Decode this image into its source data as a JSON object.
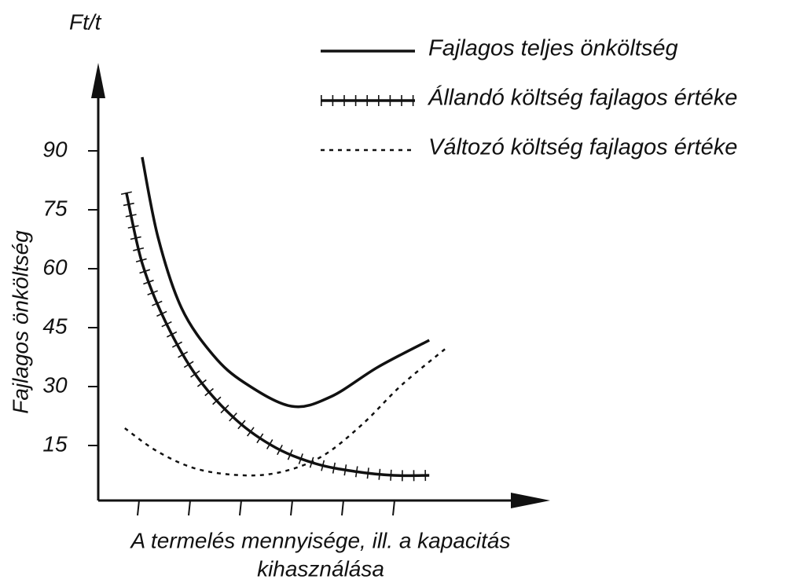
{
  "chart_data": {
    "type": "line",
    "y_unit": "Ft/t",
    "ylabel": "Fajlagos önköltség",
    "xlabel": [
      "A termelés mennyisége, ill. a kapacitás",
      "kihasználása"
    ],
    "ylim": [
      0,
      110
    ],
    "yticks": [
      15,
      30,
      45,
      60,
      75,
      90
    ],
    "xlim": [
      0.2,
      9
    ],
    "xticks": [
      1,
      2,
      3,
      4,
      5,
      6
    ],
    "color": "#111111",
    "series": [
      {
        "name": "Fajlagos teljes önköltség",
        "style": "solid",
        "x": [
          1.06,
          1.37,
          1.83,
          2.45,
          3.06,
          3.98,
          4.75,
          5.68,
          6.68
        ],
        "values": [
          88.4,
          68,
          50,
          38,
          31,
          25,
          27.4,
          35,
          41.8
        ]
      },
      {
        "name": "Állandó költség fajlagos értéke",
        "style": "hatched",
        "x": [
          0.75,
          1.06,
          1.52,
          2.14,
          2.91,
          3.68,
          4.45,
          5.22,
          5.98,
          6.68
        ],
        "values": [
          79.4,
          61.4,
          46.4,
          32.4,
          21.4,
          14.4,
          10.4,
          8.4,
          7.4,
          7.4
        ]
      },
      {
        "name": "Változó költség fajlagos értéke",
        "style": "dotted",
        "x": [
          0.72,
          1.37,
          2.14,
          3.06,
          3.83,
          4.6,
          5.37,
          6.14,
          7.03
        ],
        "values": [
          19.4,
          13.4,
          9,
          7.4,
          8.4,
          12.4,
          20.4,
          30.4,
          40
        ]
      }
    ]
  }
}
